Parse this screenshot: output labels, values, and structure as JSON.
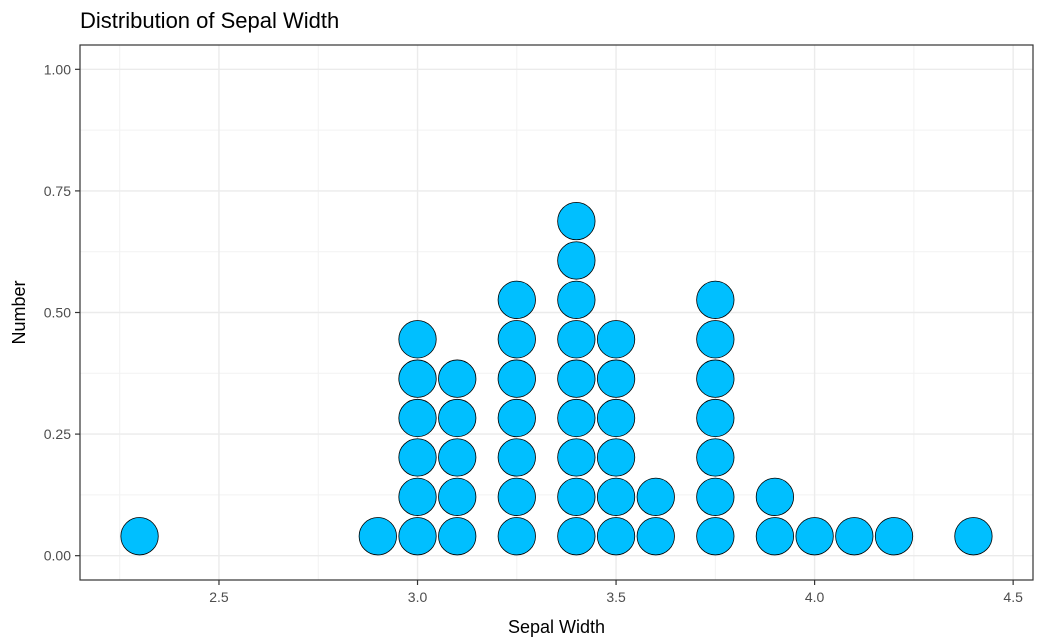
{
  "chart_data": {
    "type": "scatter",
    "subtype": "dotplot",
    "title": "Distribution of Sepal Width",
    "xlabel": "Sepal Width",
    "ylabel": "Number",
    "xlim": [
      2.15,
      4.55
    ],
    "ylim": [
      -0.05,
      1.05
    ],
    "x_ticks": [
      "2.5",
      "3.0",
      "3.5",
      "4.0",
      "4.5"
    ],
    "x_tick_values": [
      2.5,
      3.0,
      3.5,
      4.0,
      4.5
    ],
    "y_ticks": [
      "0.00",
      "0.25",
      "0.50",
      "0.75",
      "1.00"
    ],
    "y_tick_values": [
      0.0,
      0.25,
      0.5,
      0.75,
      1.0
    ],
    "grid": true,
    "stacks": [
      {
        "x": 2.3,
        "count": 1
      },
      {
        "x": 2.9,
        "count": 1
      },
      {
        "x": 3.0,
        "count": 6
      },
      {
        "x": 3.1,
        "count": 5
      },
      {
        "x": 3.25,
        "count": 7
      },
      {
        "x": 3.4,
        "count": 9
      },
      {
        "x": 3.5,
        "count": 6
      },
      {
        "x": 3.6,
        "count": 2
      },
      {
        "x": 3.75,
        "count": 7
      },
      {
        "x": 3.9,
        "count": 2
      },
      {
        "x": 4.0,
        "count": 1
      },
      {
        "x": 4.1,
        "count": 1
      },
      {
        "x": 4.2,
        "count": 1
      },
      {
        "x": 4.4,
        "count": 1
      }
    ],
    "dot_fill": "#00bfff",
    "dot_stroke": "#000000"
  }
}
